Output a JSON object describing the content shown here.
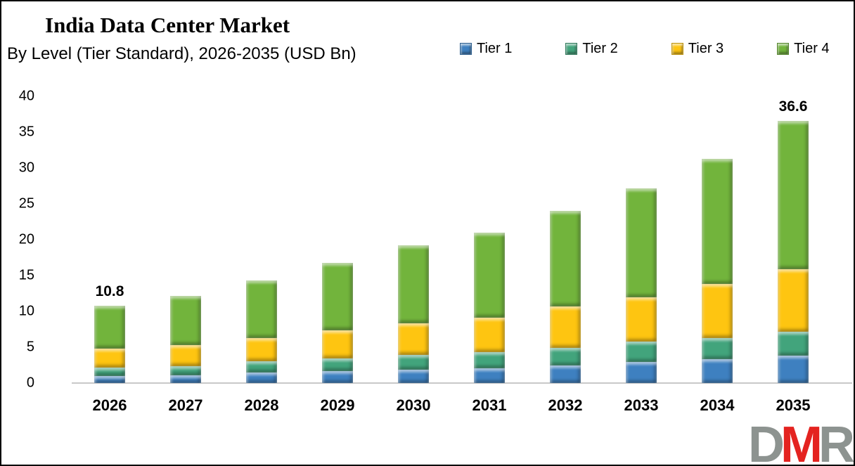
{
  "header": {
    "title": "India Data Center Market",
    "subtitle": "By Level (Tier Standard), 2026-2035 (USD Bn)"
  },
  "logo": {
    "d": "D",
    "m": "M",
    "r": "R"
  },
  "chart_data": {
    "type": "bar",
    "stacked": true,
    "title": "India Data Center Market",
    "subtitle": "By Level (Tier Standard), 2026-2035 (USD Bn)",
    "unit": "USD Bn",
    "categories": [
      "2026",
      "2027",
      "2028",
      "2029",
      "2030",
      "2031",
      "2032",
      "2033",
      "2034",
      "2035"
    ],
    "series": [
      {
        "name": "Tier 1",
        "color": "#3e80c0",
        "values": [
          1.0,
          1.1,
          1.5,
          1.7,
          1.9,
          2.1,
          2.5,
          2.9,
          3.3,
          3.8
        ]
      },
      {
        "name": "Tier 2",
        "color": "#42a47c",
        "values": [
          1.2,
          1.3,
          1.5,
          1.7,
          2.0,
          2.2,
          2.4,
          2.9,
          3.0,
          3.4
        ]
      },
      {
        "name": "Tier 3",
        "color": "#fec511",
        "values": [
          2.6,
          2.9,
          3.3,
          4.0,
          4.4,
          4.8,
          5.8,
          6.2,
          7.5,
          8.7
        ]
      },
      {
        "name": "Tier 4",
        "color": "#72b43c",
        "values": [
          6.0,
          6.9,
          8.0,
          9.4,
          10.9,
          11.9,
          13.3,
          15.2,
          17.5,
          20.7
        ]
      }
    ],
    "totals": [
      10.8,
      12.2,
      14.3,
      16.8,
      19.2,
      21.0,
      24.0,
      27.2,
      31.3,
      36.6
    ],
    "bar_labels": [
      {
        "category": "2026",
        "label": "10.8"
      },
      {
        "category": "2035",
        "label": "36.6"
      }
    ],
    "y_ticks": [
      0,
      5,
      10,
      15,
      20,
      25,
      30,
      35,
      40
    ],
    "ylim": [
      0,
      40
    ],
    "grid": false,
    "legend_position": "top-right"
  }
}
